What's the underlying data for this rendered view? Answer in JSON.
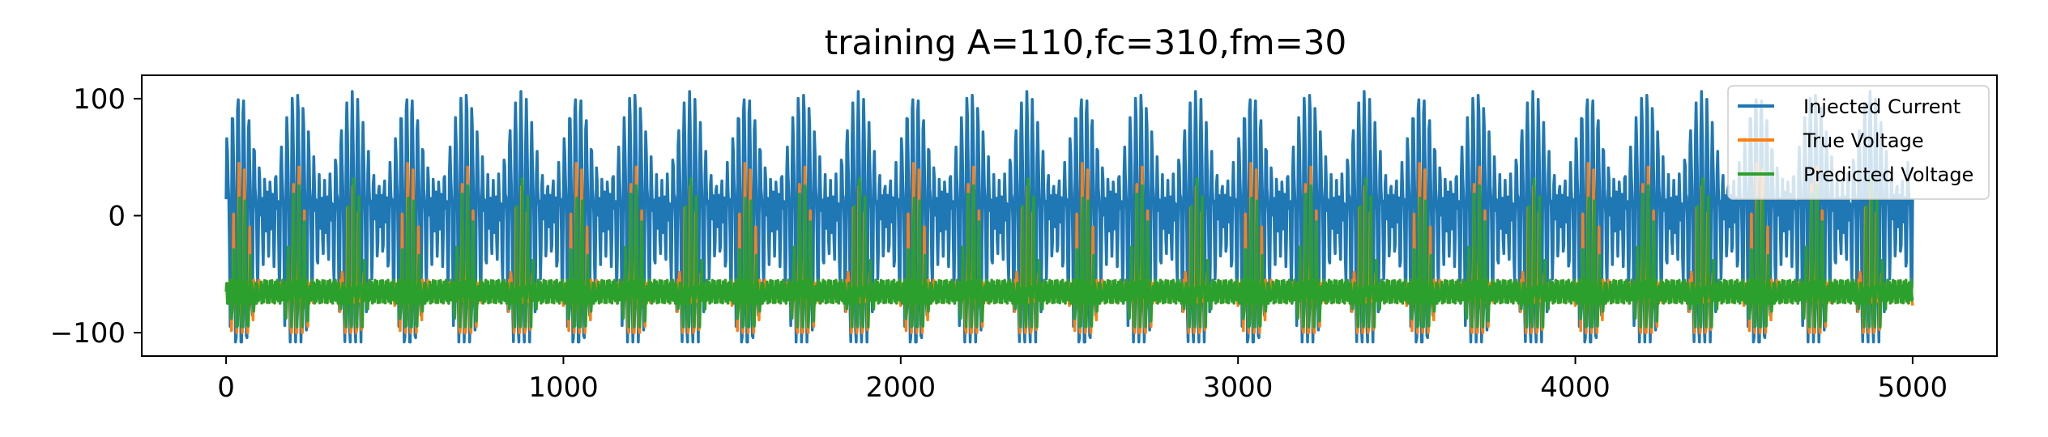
{
  "chart_data": {
    "type": "line",
    "title": "training A=110,fc=310,fm=30",
    "xlabel": "",
    "ylabel": "",
    "xlim": [
      -250,
      5250
    ],
    "ylim": [
      -120,
      120
    ],
    "x_ticks": [
      0,
      1000,
      2000,
      3000,
      4000,
      5000
    ],
    "x_tick_labels": [
      "0",
      "1000",
      "2000",
      "3000",
      "4000",
      "5000"
    ],
    "y_ticks": [
      100,
      0,
      -100
    ],
    "y_tick_labels": [
      "100",
      "0",
      "−100"
    ],
    "grid": false,
    "legend_position": "top-right",
    "x_range": [
      0,
      5000
    ],
    "amplitude": 110,
    "carrier_cycles": 310,
    "modulation_cycles": 30,
    "series": [
      {
        "name": "Injected Current",
        "color": "#1f77b4",
        "peak_max": 110,
        "peak_min": -108,
        "start_value": 0
      },
      {
        "name": "True Voltage",
        "color": "#ff7f0e",
        "resting": -65,
        "spike_peak": 45,
        "trough_min": -100
      },
      {
        "name": "Predicted Voltage",
        "color": "#2ca02c",
        "resting": -65,
        "spike_peak": 40,
        "trough_min": -95
      }
    ]
  }
}
